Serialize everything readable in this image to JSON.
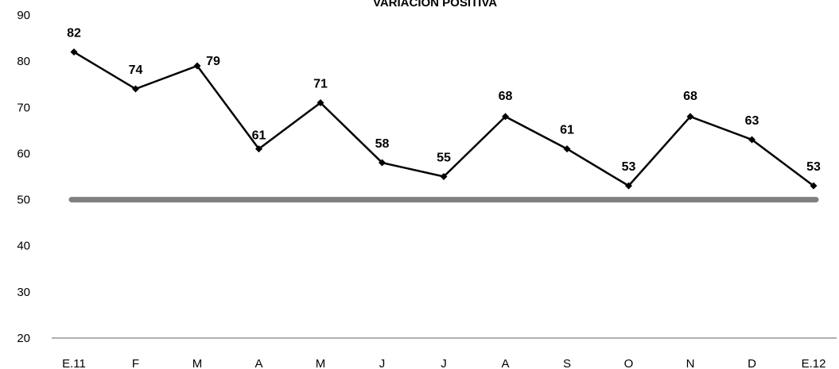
{
  "chart_data": {
    "type": "line",
    "title": "VARIACIÓN POSITIVA",
    "categories": [
      "E.11",
      "F",
      "M",
      "A",
      "M",
      "J",
      "J",
      "A",
      "S",
      "O",
      "N",
      "D",
      "E.12"
    ],
    "series": [
      {
        "values": [
          82,
          74,
          79,
          61,
          71,
          58,
          55,
          68,
          61,
          53,
          68,
          63,
          53
        ],
        "color": "#000000",
        "marker": "diamond"
      }
    ],
    "reference_line": {
      "value": 50,
      "color": "#808080"
    },
    "ylim": [
      20,
      90
    ],
    "yticks": [
      20,
      30,
      40,
      50,
      60,
      70,
      80,
      90
    ],
    "grid": false,
    "data_labels": true
  }
}
